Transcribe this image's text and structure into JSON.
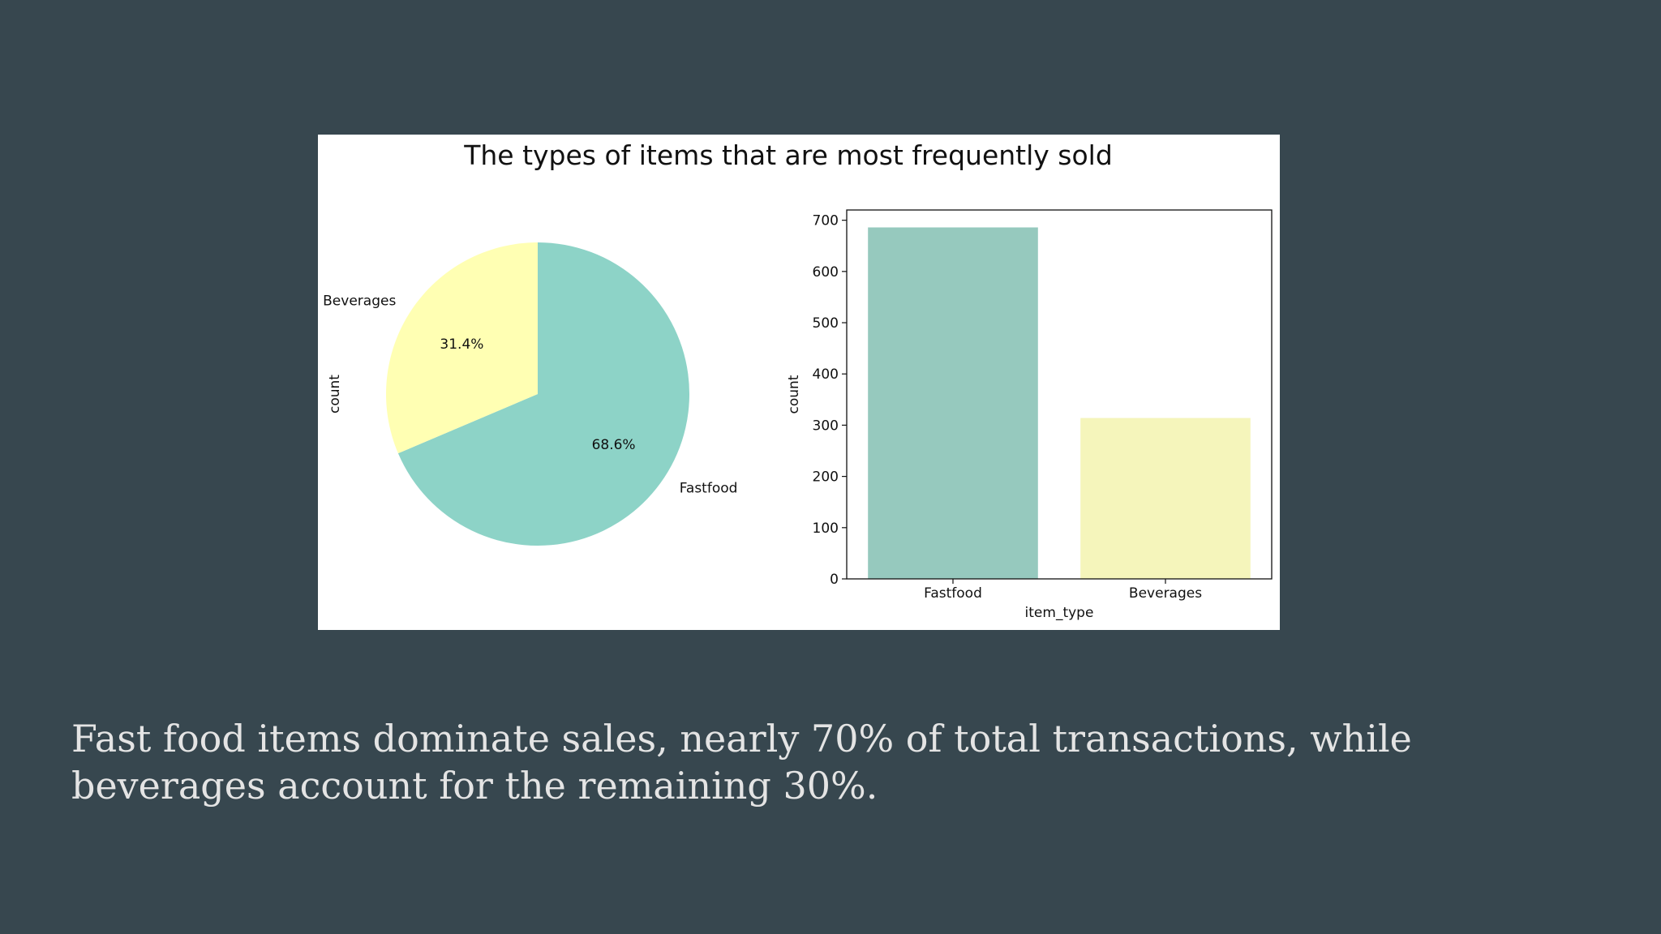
{
  "slide": {
    "caption": "Fast food items dominate sales, nearly 70% of total transactions, while beverages account for the remaining 30%."
  },
  "figure": {
    "title": "The types of items that are most frequently sold"
  },
  "chart_data": [
    {
      "type": "pie",
      "ylabel": "count",
      "labels": [
        "Fastfood",
        "Beverages"
      ],
      "values": [
        68.6,
        31.4
      ],
      "autopct_labels": [
        "68.6%",
        "31.4%"
      ],
      "colors": [
        "#8dd3c7",
        "#ffffb3"
      ]
    },
    {
      "type": "bar",
      "categories": [
        "Fastfood",
        "Beverages"
      ],
      "values": [
        686,
        314
      ],
      "xlabel": "item_type",
      "ylabel": "count",
      "ylim": [
        0,
        720
      ],
      "yticks": [
        0,
        100,
        200,
        300,
        400,
        500,
        600,
        700
      ],
      "colors": [
        "#96c9be",
        "#f5f5bb"
      ],
      "grid": false
    }
  ]
}
